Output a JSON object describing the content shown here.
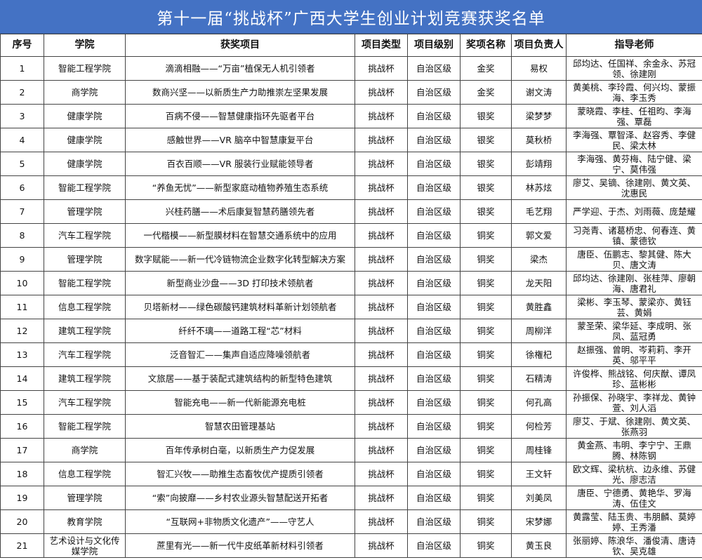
{
  "title": "第十一届“挑战杯”广西大学生创业计划竞赛获奖名单",
  "columns": [
    "序号",
    "学院",
    "获奖项目",
    "项目类型",
    "项目级别",
    "奖项名称",
    "项目负责人",
    "指导老师"
  ],
  "rows": [
    [
      "1",
      "智能工程学院",
      "滴滴相融——“万亩”植保无人机引领者",
      "挑战杯",
      "自治区级",
      "金奖",
      "易权",
      "邱均达、任国祥、余金永、苏冠领、徐建刚"
    ],
    [
      "2",
      "商学院",
      "数商兴坚——以新质生产力助推崇左坚果发展",
      "挑战杯",
      "自治区级",
      "金奖",
      "谢文涛",
      "黄美桃、李玲霞、何兴均、蒙振海、李玉秀"
    ],
    [
      "3",
      "健康学院",
      "百病不侵——智慧健康指环先驱者平台",
      "挑战杯",
      "自治区级",
      "银奖",
      "梁梦梦",
      "蒙晓霞、李桂、任祖昀、李海强、覃磊"
    ],
    [
      "4",
      "健康学院",
      "感触世界——VR 脑卒中智慧康复平台",
      "挑战杯",
      "自治区级",
      "银奖",
      "莫秋桥",
      "李海强、覃智泽、赵容秀、李健民、梁太林"
    ],
    [
      "5",
      "健康学院",
      "百衣百顺——VR 服装行业赋能领导者",
      "挑战杯",
      "自治区级",
      "银奖",
      "彭靖翔",
      "李海强、黄芬梅、陆宁健、梁宁、莫伟强"
    ],
    [
      "6",
      "智能工程学院",
      "“养鱼无忧”——新型家庭动植物养殖生态系统",
      "挑战杯",
      "自治区级",
      "银奖",
      "林苏炫",
      "廖艾、吴镝、徐建刚、黄文英、沈惠民"
    ],
    [
      "7",
      "管理学院",
      "兴桂药膳——术后康复智慧药膳领先者",
      "挑战杯",
      "自治区级",
      "银奖",
      "毛艺翔",
      "严学迎、于杰、刘雨薇、庞楚耀"
    ],
    [
      "8",
      "汽车工程学院",
      "一代楷模——新型膜材料在智慧交通系统中的应用",
      "挑战杯",
      "自治区级",
      "铜奖",
      "郭文爱",
      "习尧青、诸葛桥忠、何春连、黄镇、蒙德钦"
    ],
    [
      "9",
      "管理学院",
      "数字赋能——新一代冷链物流企业数字化转型解决方案",
      "挑战杯",
      "自治区级",
      "铜奖",
      "梁杰",
      "唐臣、伍鹏志、黎其健、陈大贝、唐文涛"
    ],
    [
      "10",
      "智能工程学院",
      "新型商业沙盘——3D 打印技术领航者",
      "挑战杯",
      "自治区级",
      "铜奖",
      "龙天阳",
      "邱均达、徐建刚、张桂萍、廖朝海、唐君礼"
    ],
    [
      "11",
      "信息工程学院",
      "贝塔新材——绿色碳酸钙建筑材料革新计划领航者",
      "挑战杯",
      "自治区级",
      "铜奖",
      "黄胜鑫",
      "梁彬、李玉琴、蒙梁亦、黄钰芸、黄娟"
    ],
    [
      "12",
      "建筑工程学院",
      "纤纤不璃——道路工程“芯”材料",
      "挑战杯",
      "自治区级",
      "铜奖",
      "周柳洋",
      "蒙圣荣、梁华延、李成明、张凤、蓝冠勇"
    ],
    [
      "13",
      "汽车工程学院",
      "泛音智汇——集声自适应降噪领航者",
      "挑战杯",
      "自治区级",
      "铜奖",
      "徐権杞",
      "赵振强、曾明、岑莉莉、李开英、邬平平"
    ],
    [
      "14",
      "建筑工程学院",
      "文旅居——基于装配式建筑结构的新型特色建筑",
      "挑战杯",
      "自治区级",
      "铜奖",
      "石精涛",
      "许俊桦、熊战铭、何庆猷、谭凤珍、蓝彬彬"
    ],
    [
      "15",
      "汽车工程学院",
      "智能充电——新一代新能源充电桩",
      "挑战杯",
      "自治区级",
      "铜奖",
      "何孔高",
      "孙振保、孙晓宇、李祥龙、黄钟萱、刘人滔"
    ],
    [
      "16",
      "智能工程学院",
      "智慧农田管理基站",
      "挑战杯",
      "自治区级",
      "铜奖",
      "何检芳",
      "廖艾、于斌、徐建刚、黄文英、张燕羽"
    ],
    [
      "17",
      "商学院",
      "百年传承树白毫，以新质生产力促发展",
      "挑战杯",
      "自治区级",
      "铜奖",
      "周桂锋",
      "黄金燕、韦明、李宁宁、王鼎腾、林陈钢"
    ],
    [
      "18",
      "信息工程学院",
      "智汇兴牧——助推生态畜牧优产提质引领者",
      "挑战杯",
      "自治区级",
      "铜奖",
      "王文轩",
      "欧文辉、梁杭杭、边永维、苏健光、廖志洁"
    ],
    [
      "19",
      "管理学院",
      "“索”向披靡——乡村农业源头智慧配送开拓者",
      "挑战杯",
      "自治区级",
      "铜奖",
      "刘美凤",
      "唐臣、宁德勇、黄艳华、罗海涛、伍佳文"
    ],
    [
      "20",
      "教育学院",
      "“互联网+非物质文化遗产”——守艺人",
      "挑战杯",
      "自治区级",
      "铜奖",
      "宋梦娜",
      "黄露莹、陆玉贵、韦朋麟、莫婷婷、王秀潘"
    ],
    [
      "21",
      "艺术设计与文化传媒学院",
      "蔗里有光——新一代牛皮纸革新材料引领者",
      "挑战杯",
      "自治区级",
      "铜奖",
      "黄玉良",
      "张丽婷、陈浪华、潘俊清、唐诗钦、吴克雄"
    ]
  ]
}
